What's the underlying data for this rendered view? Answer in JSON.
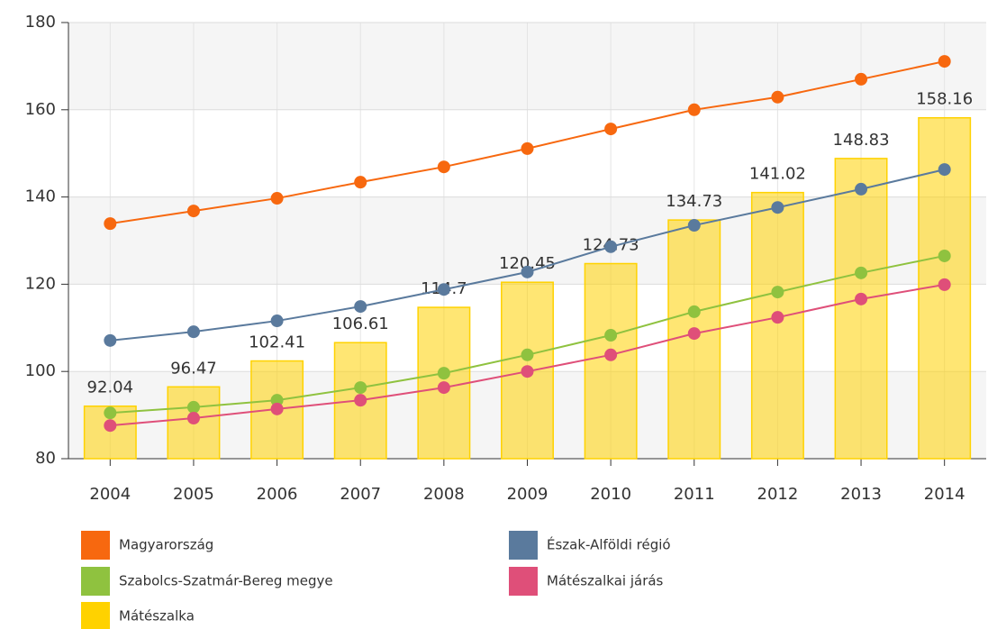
{
  "chart_data": {
    "type": "bar",
    "categories": [
      "2004",
      "2005",
      "2006",
      "2007",
      "2008",
      "2009",
      "2010",
      "2011",
      "2012",
      "2013",
      "2014"
    ],
    "ylim": [
      80,
      180
    ],
    "yticks": [
      80,
      100,
      120,
      140,
      160,
      180
    ],
    "grid": true,
    "series": [
      {
        "name": "Magyarország",
        "type": "line",
        "color": "#f7680f",
        "values": [
          133.9,
          136.8,
          139.7,
          143.4,
          146.9,
          151.1,
          155.6,
          160.0,
          162.9,
          167.0,
          171.1
        ]
      },
      {
        "name": "Észak-Alföldi régió",
        "type": "line",
        "color": "#5a7a9d",
        "values": [
          107.1,
          109.1,
          111.6,
          114.9,
          118.8,
          122.8,
          128.6,
          133.5,
          137.6,
          141.8,
          146.3
        ]
      },
      {
        "name": "Szabolcs-Szatmár-Bereg megye",
        "type": "line",
        "color": "#8fc23f",
        "values": [
          90.5,
          91.8,
          93.4,
          96.3,
          99.6,
          103.8,
          108.3,
          113.7,
          118.2,
          122.6,
          126.5
        ]
      },
      {
        "name": "Mátészalkai járás",
        "type": "line",
        "color": "#df4f79",
        "values": [
          87.6,
          89.3,
          91.4,
          93.4,
          96.3,
          100.0,
          103.8,
          108.7,
          112.4,
          116.6,
          119.9
        ]
      },
      {
        "name": "Mátészalka",
        "type": "bar",
        "color": "#ffd200",
        "values": [
          92.04,
          96.47,
          102.41,
          106.61,
          114.7,
          120.45,
          124.73,
          134.73,
          141.02,
          148.83,
          158.16
        ]
      }
    ]
  }
}
